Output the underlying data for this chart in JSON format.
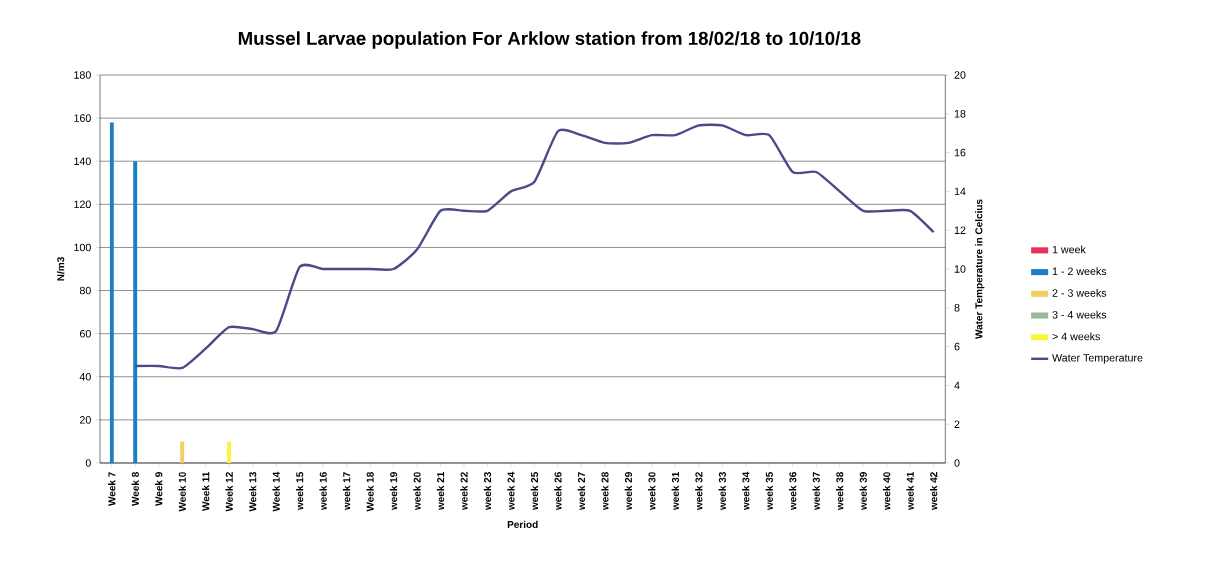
{
  "chart_data": {
    "type": "bar",
    "title": "Mussel Larvae population For Arklow station from 18/02/18 to 10/10/18",
    "xlabel": "Period",
    "ylabel": "N/m3",
    "y2label": "Water Temperature in Celcius",
    "categories": [
      "Week 7",
      "Week 8",
      "Week 9",
      "Week 10",
      "Week 11",
      "Week 12",
      "Week 13",
      "Week 14",
      "week 15",
      "week 16",
      "week 17",
      "Week 18",
      "week 19",
      "week 20",
      "week 21",
      "week 22",
      "week 23",
      "week 24",
      "week 25",
      "week 26",
      "week 27",
      "week 28",
      "week 29",
      "week 30",
      "week 31",
      "week 32",
      "week 33",
      "week 34",
      "week 35",
      "week 36",
      "week 37",
      "week 38",
      "week 39",
      "week 40",
      "week 41",
      "week 42"
    ],
    "series": [
      {
        "name": "1 week",
        "color": "#e8305a",
        "values": [
          null,
          null,
          null,
          null,
          null,
          null,
          null,
          null,
          null,
          null,
          null,
          null,
          null,
          null,
          null,
          null,
          null,
          null,
          null,
          null,
          null,
          null,
          null,
          null,
          null,
          null,
          null,
          null,
          null,
          null,
          null,
          null,
          null,
          null,
          null,
          null
        ]
      },
      {
        "name": "1 - 2 weeks",
        "color": "#1a7fc4",
        "values": [
          158,
          140,
          null,
          null,
          null,
          null,
          null,
          null,
          null,
          null,
          null,
          null,
          null,
          null,
          null,
          null,
          null,
          null,
          null,
          null,
          null,
          null,
          null,
          null,
          null,
          null,
          null,
          null,
          null,
          null,
          null,
          null,
          null,
          null,
          null,
          null
        ]
      },
      {
        "name": "2 - 3 weeks",
        "color": "#f0d060",
        "values": [
          null,
          null,
          null,
          10,
          null,
          null,
          null,
          null,
          null,
          null,
          null,
          null,
          null,
          null,
          null,
          null,
          null,
          null,
          null,
          null,
          null,
          null,
          null,
          null,
          null,
          null,
          null,
          null,
          null,
          null,
          null,
          null,
          null,
          null,
          null,
          null
        ]
      },
      {
        "name": "3 - 4 weeks",
        "color": "#9bb89b",
        "values": [
          null,
          null,
          null,
          null,
          null,
          null,
          null,
          null,
          null,
          null,
          null,
          null,
          null,
          null,
          null,
          null,
          null,
          null,
          null,
          null,
          null,
          null,
          null,
          null,
          null,
          null,
          null,
          null,
          null,
          null,
          null,
          null,
          null,
          null,
          null,
          null
        ]
      },
      {
        "name": "> 4 weeks",
        "color": "#f7f53a",
        "values": [
          null,
          null,
          null,
          null,
          null,
          10,
          null,
          null,
          null,
          null,
          null,
          null,
          null,
          null,
          null,
          null,
          null,
          null,
          null,
          null,
          null,
          null,
          null,
          null,
          null,
          null,
          null,
          null,
          null,
          null,
          null,
          null,
          null,
          null,
          null,
          null
        ]
      },
      {
        "name": "Water Temperature",
        "color": "#4a4a8a",
        "type": "line",
        "axis": "y2",
        "values": [
          null,
          5.0,
          5.0,
          4.9,
          5.9,
          7.0,
          6.9,
          6.8,
          10.1,
          10.0,
          10.0,
          10.0,
          10.0,
          11.0,
          13.0,
          13.0,
          13.0,
          14.0,
          14.5,
          17.1,
          16.9,
          16.5,
          16.5,
          16.9,
          16.9,
          17.4,
          17.4,
          16.9,
          16.9,
          15.0,
          15.0,
          14.0,
          13.0,
          13.0,
          13.0,
          11.9
        ]
      }
    ],
    "ylim": [
      0,
      180
    ],
    "yticks": [
      0,
      20,
      40,
      60,
      80,
      100,
      120,
      140,
      160,
      180
    ],
    "y2lim": [
      0,
      20
    ],
    "y2ticks": [
      0,
      2,
      4,
      6,
      8,
      10,
      12,
      14,
      16,
      18,
      20
    ],
    "grid": "y",
    "legend": "right"
  }
}
